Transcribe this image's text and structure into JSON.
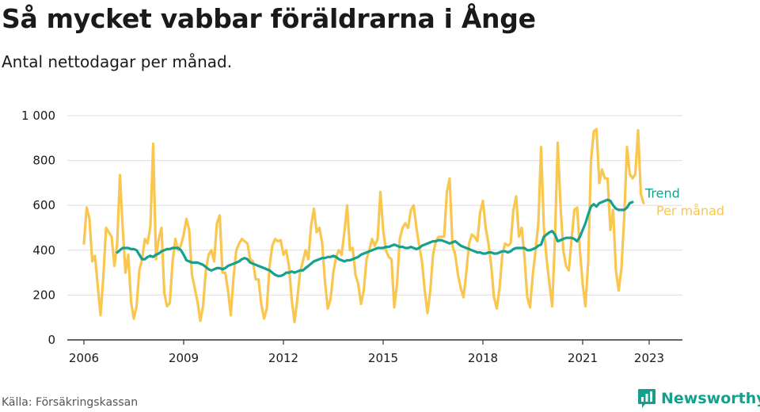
{
  "header": {
    "title": "Så mycket vabbar föräldrarna i Ånge",
    "subtitle": "Antal nettodagar per månad."
  },
  "footer": {
    "source": "Källa: Försäkringskassan",
    "brand": "Newsworthy"
  },
  "colors": {
    "monthly": "#f9c74f",
    "trend": "#16a08f",
    "axis": "#333333",
    "grid": "#dddddd",
    "text": "#1a1a1a",
    "brand": "#14a08c"
  },
  "icons": {
    "brand": "bar-chart-logo-icon"
  },
  "chart_data": {
    "type": "line",
    "x_start": "2006-01",
    "x_interval": "month",
    "xlim": [
      "2005-07",
      "2024-01"
    ],
    "ylim": [
      0,
      1000
    ],
    "x_ticks": [
      "2006",
      "2009",
      "2012",
      "2015",
      "2018",
      "2021",
      "2023"
    ],
    "y_ticks": [
      0,
      200,
      400,
      600,
      800,
      1000
    ],
    "y_tick_labels": [
      "0",
      "200",
      "400",
      "600",
      "800",
      "1 000"
    ],
    "grid": "horizontal",
    "legend": "end-of-line labels, right",
    "series": [
      {
        "name": "Per månad",
        "values": [
          430,
          590,
          540,
          350,
          375,
          240,
          110,
          280,
          500,
          480,
          460,
          330,
          430,
          735,
          500,
          300,
          380,
          170,
          95,
          150,
          310,
          360,
          450,
          430,
          510,
          875,
          360,
          450,
          500,
          210,
          150,
          165,
          350,
          450,
          400,
          420,
          470,
          540,
          490,
          290,
          230,
          170,
          85,
          150,
          310,
          380,
          400,
          350,
          520,
          555,
          300,
          300,
          220,
          110,
          280,
          400,
          430,
          450,
          440,
          430,
          360,
          350,
          270,
          270,
          160,
          95,
          140,
          330,
          420,
          450,
          440,
          445,
          380,
          400,
          330,
          180,
          80,
          180,
          300,
          350,
          400,
          360,
          510,
          585,
          480,
          500,
          430,
          260,
          140,
          180,
          300,
          370,
          400,
          380,
          480,
          600,
          400,
          410,
          290,
          250,
          160,
          220,
          360,
          400,
          450,
          420,
          450,
          660,
          490,
          400,
          370,
          360,
          145,
          250,
          450,
          500,
          520,
          500,
          580,
          600,
          500,
          420,
          350,
          220,
          120,
          220,
          380,
          440,
          460,
          460,
          460,
          660,
          720,
          420,
          380,
          290,
          230,
          190,
          300,
          430,
          470,
          460,
          440,
          570,
          620,
          500,
          430,
          330,
          190,
          140,
          230,
          380,
          430,
          420,
          430,
          580,
          640,
          460,
          500,
          370,
          190,
          145,
          290,
          400,
          520,
          860,
          500,
          360,
          250,
          150,
          450,
          880,
          600,
          400,
          330,
          310,
          450,
          580,
          590,
          400,
          250,
          150,
          350,
          800,
          930,
          940,
          700,
          760,
          720,
          720,
          490,
          580,
          310,
          220,
          320,
          550,
          860,
          740,
          720,
          740,
          935,
          650,
          610
        ],
        "color": "#f9c74f"
      },
      {
        "name": "Trend",
        "x_start": "2007-01",
        "values": [
          390,
          400,
          410,
          410,
          410,
          405,
          405,
          400,
          380,
          360,
          360,
          370,
          375,
          370,
          380,
          385,
          395,
          400,
          405,
          405,
          410,
          410,
          410,
          400,
          380,
          355,
          350,
          345,
          345,
          345,
          340,
          335,
          325,
          315,
          310,
          315,
          320,
          320,
          315,
          320,
          330,
          335,
          340,
          345,
          350,
          360,
          365,
          360,
          345,
          340,
          335,
          330,
          325,
          320,
          315,
          310,
          300,
          290,
          285,
          285,
          290,
          300,
          300,
          305,
          300,
          305,
          310,
          310,
          320,
          330,
          340,
          350,
          355,
          360,
          365,
          365,
          370,
          370,
          375,
          370,
          360,
          355,
          350,
          355,
          355,
          360,
          365,
          370,
          380,
          385,
          390,
          395,
          400,
          405,
          410,
          410,
          410,
          415,
          415,
          420,
          425,
          420,
          415,
          415,
          410,
          410,
          415,
          410,
          405,
          410,
          420,
          425,
          430,
          435,
          440,
          440,
          445,
          445,
          440,
          435,
          430,
          435,
          440,
          430,
          420,
          415,
          410,
          405,
          400,
          395,
          390,
          390,
          385,
          385,
          390,
          390,
          385,
          385,
          390,
          395,
          395,
          390,
          395,
          405,
          410,
          410,
          410,
          410,
          400,
          400,
          405,
          410,
          420,
          425,
          460,
          470,
          480,
          485,
          470,
          440,
          445,
          450,
          455,
          455,
          455,
          450,
          440,
          460,
          490,
          520,
          560,
          595,
          605,
          595,
          610,
          615,
          620,
          625,
          620,
          600,
          585,
          580,
          580,
          580,
          590,
          610,
          615
        ],
        "color": "#16a08f"
      }
    ],
    "end_labels": [
      "Per månad",
      "Trend"
    ]
  }
}
